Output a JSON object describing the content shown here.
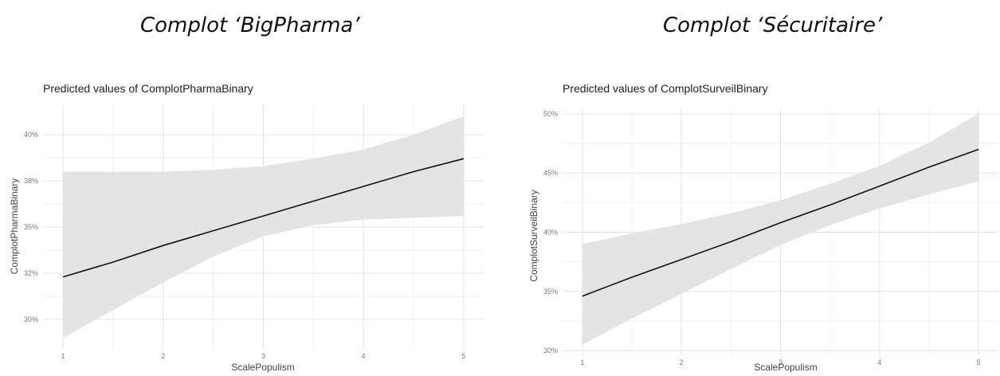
{
  "headings": {
    "left": "Complot ‘BigPharma’",
    "right": "Complot ‘Sécuritaire’"
  },
  "chart_data": [
    {
      "type": "line",
      "title": "Predicted values of ComplotPharmaBinary",
      "xlabel": "ScalePopulism",
      "ylabel": "ComplotPharmaBinary",
      "x_ticks": [
        1,
        2,
        3,
        4,
        5
      ],
      "y_ticks": [
        30,
        32.5,
        35,
        37.5,
        40
      ],
      "y_tick_labels": [
        "30%",
        "32%",
        "35%",
        "38%",
        "40%"
      ],
      "xlim": [
        0.8,
        5.2
      ],
      "ylim": [
        28.4,
        41.6
      ],
      "grid": true,
      "series": [
        {
          "x": [
            1,
            1.5,
            2,
            2.5,
            3,
            3.5,
            4,
            4.5,
            5
          ],
          "y": [
            32.3,
            33.1,
            34.0,
            34.8,
            35.6,
            36.4,
            37.2,
            38.0,
            38.7
          ],
          "lower": [
            29.0,
            30.5,
            32.0,
            33.4,
            34.5,
            35.1,
            35.4,
            35.5,
            35.6
          ],
          "upper": [
            38.0,
            38.0,
            38.0,
            38.1,
            38.3,
            38.7,
            39.2,
            40.0,
            41.0
          ]
        }
      ]
    },
    {
      "type": "line",
      "title": "Predicted values of ComplotSurveilBinary",
      "xlabel": "ScalePopulism",
      "ylabel": "ComplotSurveilBinary",
      "x_ticks": [
        1,
        2,
        3,
        4,
        5
      ],
      "y_ticks": [
        30,
        35,
        40,
        45,
        50
      ],
      "y_tick_labels": [
        "30%",
        "35%",
        "40%",
        "45%",
        "50%"
      ],
      "xlim": [
        0.8,
        5.2
      ],
      "ylim": [
        29.6,
        50.4
      ],
      "grid": true,
      "series": [
        {
          "x": [
            1,
            1.5,
            2,
            2.5,
            3,
            3.5,
            4,
            4.5,
            5
          ],
          "y": [
            34.6,
            36.2,
            37.7,
            39.2,
            40.8,
            42.3,
            43.9,
            45.5,
            47.0
          ],
          "lower": [
            30.5,
            32.7,
            34.8,
            36.9,
            38.9,
            40.6,
            42.0,
            43.2,
            44.3
          ],
          "upper": [
            39.0,
            39.9,
            40.7,
            41.6,
            42.7,
            44.1,
            45.6,
            47.6,
            50.0
          ]
        }
      ]
    }
  ]
}
